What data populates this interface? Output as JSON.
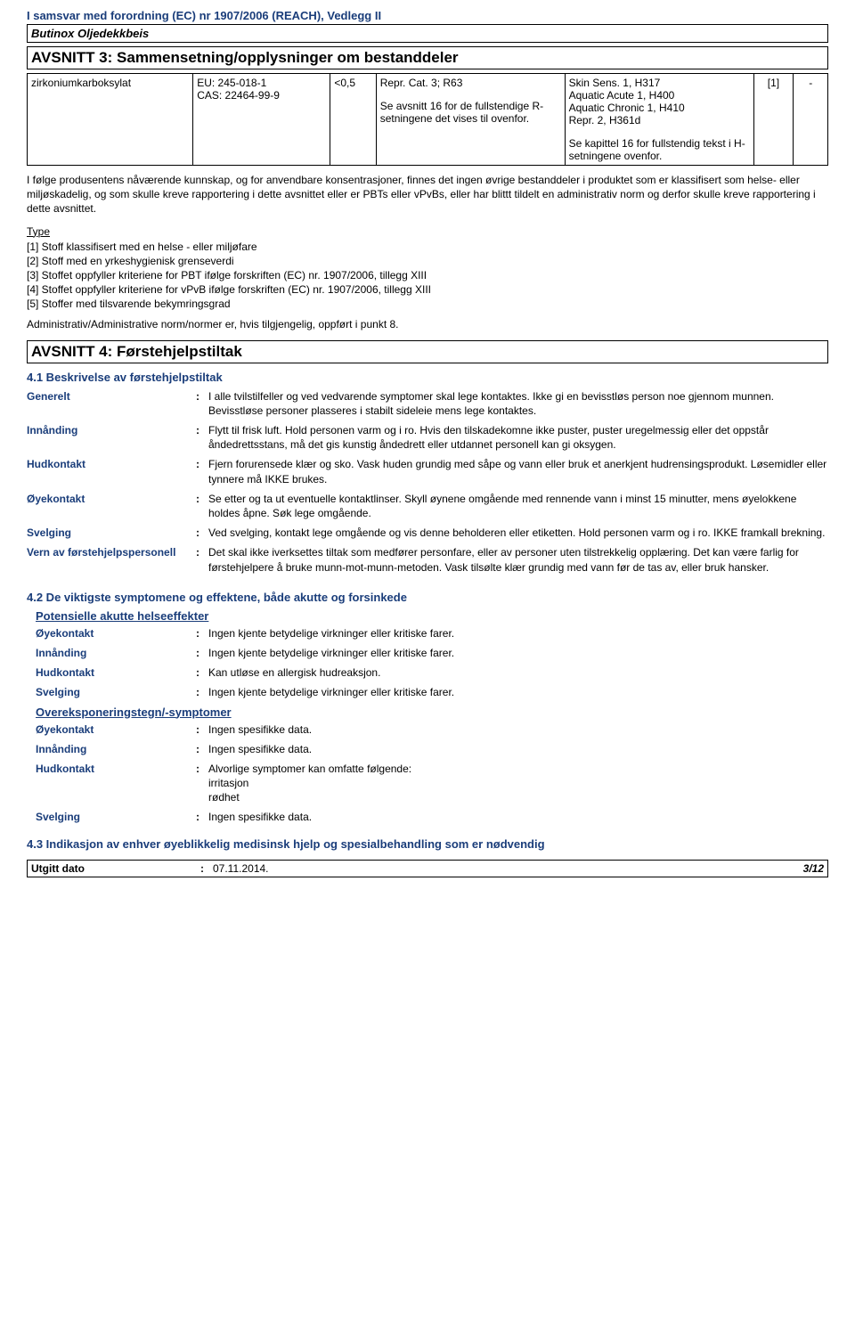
{
  "header": {
    "regulation": "I samsvar med forordning (EC) nr 1907/2006 (REACH), Vedlegg II",
    "product": "Butinox Oljedekkbeis"
  },
  "section3": {
    "title": "AVSNITT 3: Sammensetning/opplysninger om bestanddeler",
    "table": {
      "name": "zirkoniumkarboksylat",
      "ids": "EU: 245-018-1\nCAS: 22464-99-9",
      "pct": "<0,5",
      "repr": "Repr. Cat. 3; R63",
      "repr_note": "Se avsnitt 16 for de fullstendige R-setningene det vises til ovenfor.",
      "hazards": "Skin Sens. 1, H317\nAquatic Acute 1, H400\nAquatic Chronic 1, H410\nRepr. 2, H361d",
      "hazards_note": "Se kapittel 16 for fullstendig tekst i H-setningene ovenfor.",
      "ref": "[1]",
      "dash": "-"
    },
    "para": "I følge produsentens nåværende kunnskap, og for anvendbare konsentrasjoner, finnes det ingen øvrige bestanddeler i produktet som er klassifisert som helse- eller miljøskadelig, og som skulle kreve rapportering i dette avsnittet eller er PBTs eller vPvBs, eller har blittt tildelt en administrativ norm og derfor skulle kreve rapportering i dette avsnittet.",
    "type_label": "Type",
    "types": [
      "[1] Stoff klassifisert med en helse - eller miljøfare",
      "[2] Stoff med en yrkeshygienisk grenseverdi",
      "[3] Stoffet oppfyller kriteriene for PBT ifølge forskriften (EC) nr. 1907/2006, tillegg XIII",
      "[4] Stoffet oppfyller kriteriene for vPvB ifølge forskriften (EC) nr. 1907/2006, tillegg XIII",
      "[5] Stoffer med tilsvarende bekymringsgrad"
    ],
    "admin": "Administrativ/Administrative norm/normer er, hvis tilgjengelig, oppført i punkt 8."
  },
  "section4": {
    "title": "AVSNITT 4: Førstehjelpstiltak",
    "sub41": "4.1 Beskrivelse av førstehjelpstiltak",
    "rows41": [
      {
        "label": "Generelt",
        "value": "I alle tvilstilfeller og ved vedvarende symptomer skal lege kontaktes. Ikke gi en bevisstløs person noe gjennom munnen. Bevisstløse personer plasseres i stabilt sideleie mens lege kontaktes."
      },
      {
        "label": "Innånding",
        "value": "Flytt til frisk luft. Hold personen varm og i ro. Hvis den tilskadekomne ikke puster, puster uregelmessig eller det oppstår åndedrettsstans, må det gis kunstig åndedrett eller utdannet personell kan gi oksygen."
      },
      {
        "label": "Hudkontakt",
        "value": "Fjern forurensede klær og sko. Vask huden grundig med såpe og vann eller bruk et anerkjent hudrensingsprodukt. Løsemidler eller tynnere må IKKE brukes."
      },
      {
        "label": "Øyekontakt",
        "value": "Se etter og ta ut eventuelle kontaktlinser. Skyll øynene omgående med rennende vann i minst 15 minutter, mens øyelokkene holdes åpne. Søk lege omgående."
      },
      {
        "label": "Svelging",
        "value": "Ved svelging, kontakt lege omgående og vis denne beholderen eller etiketten. Hold personen varm og i ro. IKKE framkall brekning."
      },
      {
        "label": "Vern av førstehjelpspersonell",
        "value": "Det skal ikke iverksettes tiltak som medfører personfare, eller av personer uten tilstrekkelig opplæring.  Det kan være farlig for førstehjelpere å bruke munn-mot-munn-metoden.  Vask tilsølte klær grundig med vann før de tas av, eller bruk hansker."
      }
    ],
    "sub42": "4.2 De viktigste symptomene og effektene, både akutte og forsinkede",
    "potential": "Potensielle akutte helseeffekter",
    "rows42a": [
      {
        "label": "Øyekontakt",
        "value": "Ingen kjente betydelige virkninger eller kritiske farer."
      },
      {
        "label": "Innånding",
        "value": "Ingen kjente betydelige virkninger eller kritiske farer."
      },
      {
        "label": "Hudkontakt",
        "value": "Kan utløse en allergisk hudreaksjon."
      },
      {
        "label": "Svelging",
        "value": "Ingen kjente betydelige virkninger eller kritiske farer."
      }
    ],
    "overexp": "Overeksponeringstegn/-symptomer",
    "rows42b": [
      {
        "label": "Øyekontakt",
        "value": "Ingen spesifikke data."
      },
      {
        "label": "Innånding",
        "value": "Ingen spesifikke data."
      },
      {
        "label": "Hudkontakt",
        "value": "Alvorlige symptomer kan omfatte følgende:\nirritasjon\nrødhet"
      },
      {
        "label": "Svelging",
        "value": "Ingen spesifikke data."
      }
    ],
    "sub43": "4.3 Indikasjon av enhver øyeblikkelig medisinsk hjelp og spesialbehandling som er nødvendig"
  },
  "footer": {
    "label": "Utgitt dato",
    "date": "07.11.2014.",
    "page": "3/12"
  }
}
